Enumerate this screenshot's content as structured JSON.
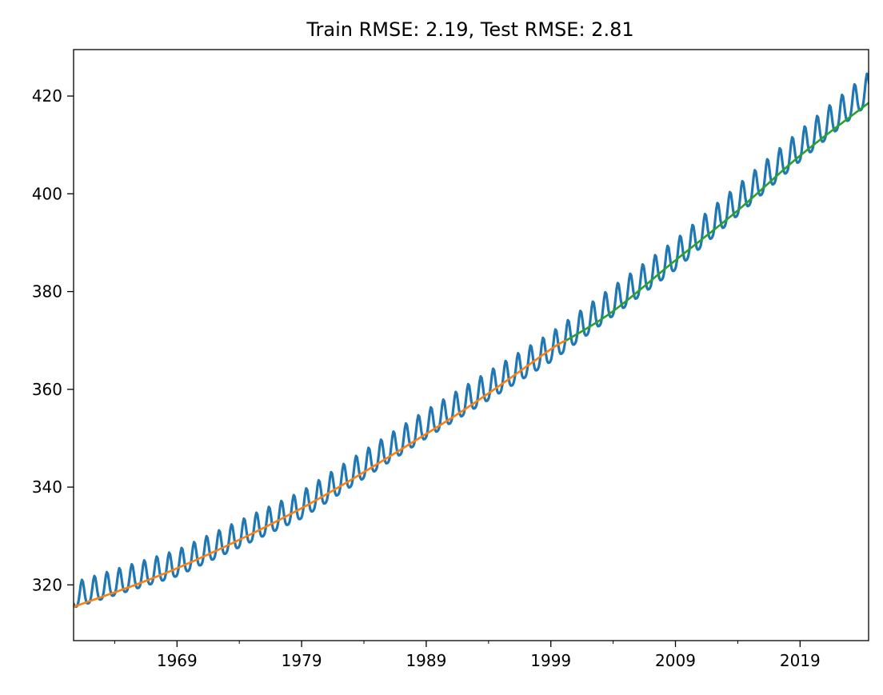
{
  "chart_data": {
    "type": "line",
    "title": "Train RMSE: 2.19, Test RMSE: 2.81",
    "xlabel": "",
    "ylabel": "",
    "x_axis": "year",
    "xlim": [
      1960.7,
      2024.5
    ],
    "ylim": [
      308.6,
      429.5
    ],
    "x_major_ticks": [
      1969,
      1979,
      1989,
      1999,
      2009,
      2019
    ],
    "x_minor_ticks": [
      1964,
      1974,
      1984,
      1994,
      2004,
      2014
    ],
    "y_ticks": [
      320,
      340,
      360,
      380,
      400,
      420
    ],
    "grid": false,
    "legend": "none",
    "series": [
      {
        "role": "observed",
        "color": "#1f77b4",
        "form": "seasonal",
        "x_start": 1960.7,
        "x_end": 2024.5,
        "step_years": 0.08333,
        "trend_samples": [
          {
            "x": 1961,
            "y": 317.6
          },
          {
            "x": 1969,
            "y": 323.9
          },
          {
            "x": 1979,
            "y": 335.8
          },
          {
            "x": 1989,
            "y": 352.3
          },
          {
            "x": 1999,
            "y": 368.0
          },
          {
            "x": 2009,
            "y": 386.9
          },
          {
            "x": 2019,
            "y": 409.2
          },
          {
            "x": 2024.5,
            "y": 421.0
          }
        ],
        "seasonal_amplitude_start": 2.6,
        "seasonal_amplitude_end": 3.2,
        "seasonal_peak_month_fraction": 0.38
      },
      {
        "role": "train-fit",
        "color": "#ff7f0e",
        "points": [
          {
            "x": 1960.7,
            "y": 315.5
          },
          {
            "x": 1969,
            "y": 323.4
          },
          {
            "x": 1979,
            "y": 335.7
          },
          {
            "x": 1989,
            "y": 350.9
          },
          {
            "x": 1994,
            "y": 359.2
          },
          {
            "x": 1999,
            "y": 368.2
          },
          {
            "x": 2000.3,
            "y": 370.1
          }
        ]
      },
      {
        "role": "test-fit",
        "color": "#2ca02c",
        "points": [
          {
            "x": 2000.3,
            "y": 370.1
          },
          {
            "x": 2004,
            "y": 376.0
          },
          {
            "x": 2009,
            "y": 386.4
          },
          {
            "x": 2014,
            "y": 396.6
          },
          {
            "x": 2019,
            "y": 407.8
          },
          {
            "x": 2024.5,
            "y": 418.6
          }
        ]
      }
    ]
  }
}
